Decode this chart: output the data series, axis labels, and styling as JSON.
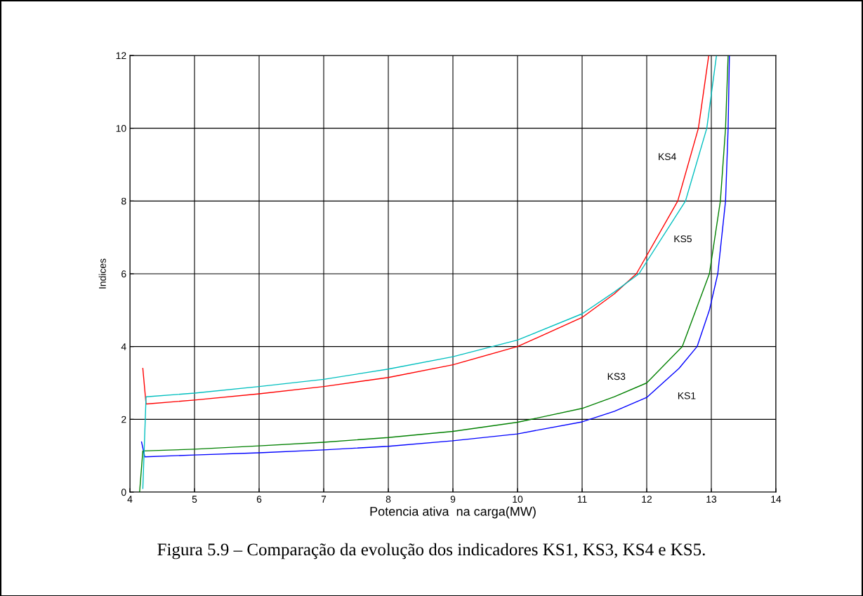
{
  "chart_data": {
    "type": "line",
    "xlabel": "Potencia ativa  na carga(MW)",
    "ylabel": "Indices",
    "xlim": [
      4,
      14
    ],
    "xticks": [
      4,
      5,
      6,
      7,
      8,
      9,
      10,
      11,
      12,
      13,
      14
    ],
    "ylim": [
      0,
      12
    ],
    "yticks": [
      0,
      2,
      4,
      6,
      8,
      10,
      12
    ],
    "grid": true,
    "series": [
      {
        "name": "KS1",
        "color": "#0000ff",
        "x": [
          4.18,
          4.23,
          5,
          6,
          7,
          8,
          9,
          10,
          11,
          11.5,
          12,
          12.5,
          12.78,
          12.97,
          13.1,
          13.22,
          13.26,
          13.28
        ],
        "values": [
          1.38,
          0.97,
          1.02,
          1.08,
          1.16,
          1.26,
          1.41,
          1.6,
          1.93,
          2.22,
          2.6,
          3.4,
          4,
          5,
          6,
          8,
          10,
          12
        ]
      },
      {
        "name": "KS3",
        "color": "#008000",
        "x": [
          4.15,
          4.2,
          5,
          6,
          7,
          8,
          9,
          10,
          11,
          11.5,
          12,
          12.55,
          12.97,
          13.14,
          13.22,
          13.26
        ],
        "values": [
          0,
          1.13,
          1.18,
          1.27,
          1.37,
          1.5,
          1.67,
          1.92,
          2.3,
          2.62,
          3.0,
          4,
          6,
          8,
          10,
          12
        ]
      },
      {
        "name": "KS4",
        "color": "#ff0000",
        "x": [
          4.2,
          4.25,
          5,
          6,
          7,
          8,
          9,
          10,
          11,
          11.5,
          11.84,
          12.48,
          12.8,
          12.96
        ],
        "values": [
          3.4,
          2.42,
          2.53,
          2.7,
          2.9,
          3.15,
          3.5,
          4.0,
          4.8,
          5.45,
          6,
          8,
          10,
          12
        ]
      },
      {
        "name": "KS5",
        "color": "#00bfbf",
        "x": [
          4.2,
          4.25,
          5,
          6,
          7,
          8,
          9,
          10,
          11,
          11.5,
          11.88,
          12.6,
          12.93,
          13.08
        ],
        "values": [
          0.1,
          2.62,
          2.72,
          2.9,
          3.1,
          3.38,
          3.72,
          4.18,
          4.9,
          5.5,
          6,
          8,
          10,
          12
        ]
      }
    ],
    "annotations": [
      "Figura 5.9 – Comparação da evolução dos indicadores KS1, KS3, KS4 e KS5."
    ]
  }
}
